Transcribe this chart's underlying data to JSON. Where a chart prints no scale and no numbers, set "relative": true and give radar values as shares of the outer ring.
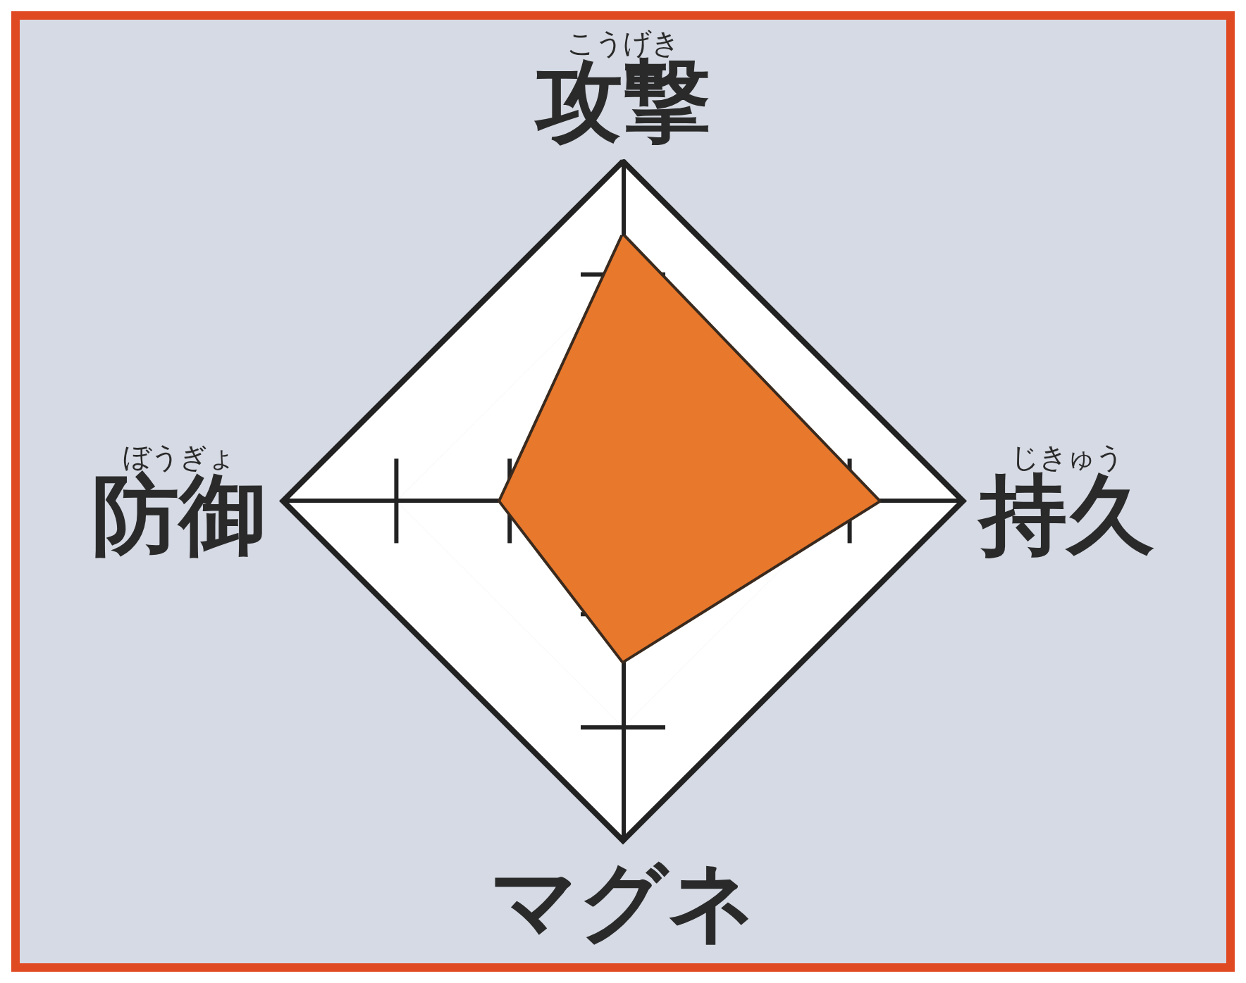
{
  "chart_data": {
    "type": "radar",
    "relative": true,
    "categories": [
      "こうげき攻撃",
      "じきゅう持久",
      "マグネ",
      "ぼうぎょ防御"
    ],
    "series": [
      {
        "color": "#e8782c",
        "values": [
          0.78,
          0.75,
          0.47,
          0.36
        ]
      }
    ]
  }
}
